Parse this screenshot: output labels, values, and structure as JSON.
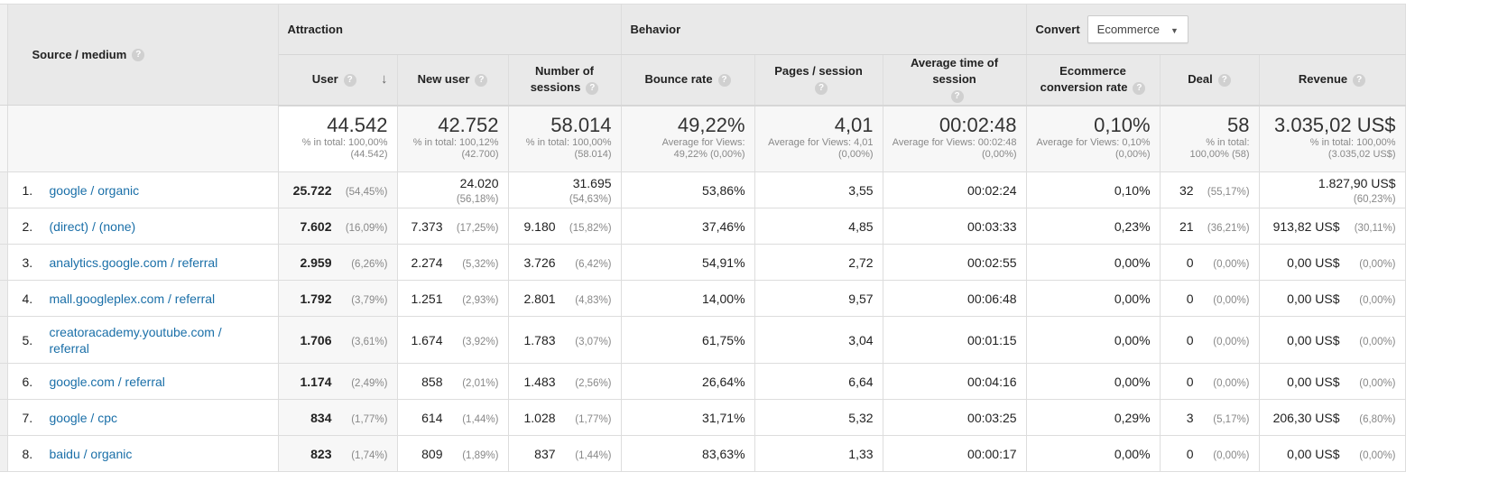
{
  "groups": {
    "attraction": "Attraction",
    "behavior": "Behavior",
    "convert": "Convert",
    "convert_select": "Ecommerce"
  },
  "headers": {
    "source": "Source / medium",
    "user": "User",
    "new_user": "New user",
    "sessions": "Number of sessions",
    "bounce": "Bounce rate",
    "pages": "Pages / session",
    "avg_time": "Average time of session",
    "conv": "Ecommerce conversion rate",
    "deal": "Deal",
    "revenue": "Revenue"
  },
  "totals": [
    {
      "v": "44.542",
      "s": "% in total: 100,00% (44.542)"
    },
    {
      "v": "42.752",
      "s": "% in total: 100,12% (42.700)"
    },
    {
      "v": "58.014",
      "s": "% in total: 100,00% (58.014)"
    },
    {
      "v": "49,22%",
      "s": "Average for Views: 49,22% (0,00%)"
    },
    {
      "v": "4,01",
      "s": "Average for Views: 4,01 (0,00%)"
    },
    {
      "v": "00:02:48",
      "s": "Average for Views: 00:02:48 (0,00%)"
    },
    {
      "v": "0,10%",
      "s": "Average for Views: 0,10% (0,00%)"
    },
    {
      "v": "58",
      "s": "% in total: 100,00% (58)"
    },
    {
      "v": "3.035,02 US$",
      "s": "% in total: 100,00% (3.035,02 US$)"
    }
  ],
  "rows": [
    {
      "i": "1.",
      "src": "google / organic",
      "u": "25.722",
      "up": "(54,45%)",
      "n": "24.020",
      "np": "(56,18%)",
      "s": "31.695",
      "sp": "(54,63%)",
      "b": "53,86%",
      "p": "3,55",
      "t": "00:02:24",
      "c": "0,10%",
      "d": "32",
      "dp": "(55,17%)",
      "r": "1.827,90 US$",
      "rp": "(60,23%)"
    },
    {
      "i": "2.",
      "src": "(direct) / (none)",
      "u": "7.602",
      "up": "(16,09%)",
      "n": "7.373",
      "np": "(17,25%)",
      "s": "9.180",
      "sp": "(15,82%)",
      "b": "37,46%",
      "p": "4,85",
      "t": "00:03:33",
      "c": "0,23%",
      "d": "21",
      "dp": "(36,21%)",
      "r": "913,82 US$",
      "rp": "(30,11%)"
    },
    {
      "i": "3.",
      "src": "analytics.google.com / referral",
      "u": "2.959",
      "up": "(6,26%)",
      "n": "2.274",
      "np": "(5,32%)",
      "s": "3.726",
      "sp": "(6,42%)",
      "b": "54,91%",
      "p": "2,72",
      "t": "00:02:55",
      "c": "0,00%",
      "d": "0",
      "dp": "(0,00%)",
      "r": "0,00 US$",
      "rp": "(0,00%)"
    },
    {
      "i": "4.",
      "src": "mall.googleplex.com / referral",
      "u": "1.792",
      "up": "(3,79%)",
      "n": "1.251",
      "np": "(2,93%)",
      "s": "2.801",
      "sp": "(4,83%)",
      "b": "14,00%",
      "p": "9,57",
      "t": "00:06:48",
      "c": "0,00%",
      "d": "0",
      "dp": "(0,00%)",
      "r": "0,00 US$",
      "rp": "(0,00%)"
    },
    {
      "i": "5.",
      "src": "creatoracademy.youtube.com / referral",
      "u": "1.706",
      "up": "(3,61%)",
      "n": "1.674",
      "np": "(3,92%)",
      "s": "1.783",
      "sp": "(3,07%)",
      "b": "61,75%",
      "p": "3,04",
      "t": "00:01:15",
      "c": "0,00%",
      "d": "0",
      "dp": "(0,00%)",
      "r": "0,00 US$",
      "rp": "(0,00%)"
    },
    {
      "i": "6.",
      "src": "google.com / referral",
      "u": "1.174",
      "up": "(2,49%)",
      "n": "858",
      "np": "(2,01%)",
      "s": "1.483",
      "sp": "(2,56%)",
      "b": "26,64%",
      "p": "6,64",
      "t": "00:04:16",
      "c": "0,00%",
      "d": "0",
      "dp": "(0,00%)",
      "r": "0,00 US$",
      "rp": "(0,00%)"
    },
    {
      "i": "7.",
      "src": "google / cpc",
      "u": "834",
      "up": "(1,77%)",
      "n": "614",
      "np": "(1,44%)",
      "s": "1.028",
      "sp": "(1,77%)",
      "b": "31,71%",
      "p": "5,32",
      "t": "00:03:25",
      "c": "0,29%",
      "d": "3",
      "dp": "(5,17%)",
      "r": "206,30 US$",
      "rp": "(6,80%)"
    },
    {
      "i": "8.",
      "src": "baidu / organic",
      "u": "823",
      "up": "(1,74%)",
      "n": "809",
      "np": "(1,89%)",
      "s": "837",
      "sp": "(1,44%)",
      "b": "83,63%",
      "p": "1,33",
      "t": "00:00:17",
      "c": "0,00%",
      "d": "0",
      "dp": "(0,00%)",
      "r": "0,00 US$",
      "rp": "(0,00%)"
    }
  ]
}
